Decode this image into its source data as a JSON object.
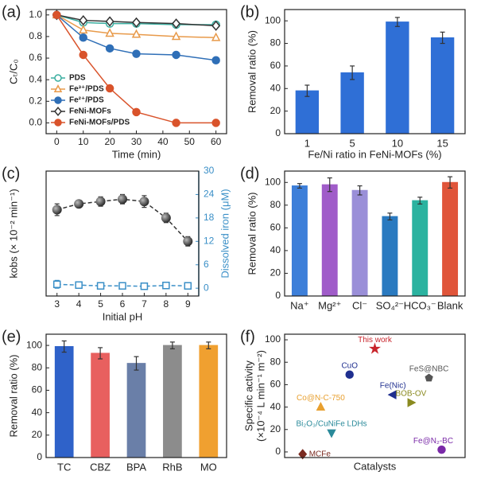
{
  "chart_data": [
    {
      "type": "line",
      "panel": "(a)",
      "xlabel": "Time (min)",
      "ylabel": "Cₜ/C₀",
      "x": [
        0,
        10,
        20,
        30,
        45,
        60
      ],
      "xlim": [
        -4,
        64
      ],
      "xticks": [
        0,
        10,
        20,
        30,
        40,
        50,
        60
      ],
      "ylim": [
        -0.1,
        1.05
      ],
      "yticks": [
        {
          "value": 0,
          "label": "0.0"
        },
        {
          "value": 0.2,
          "label": "0.2"
        },
        {
          "value": 0.4,
          "label": "0.4"
        },
        {
          "value": 0.6,
          "label": "0.6"
        },
        {
          "value": 0.8,
          "label": "0.8"
        },
        {
          "value": 1,
          "label": "1.0"
        }
      ],
      "legend": "lower left",
      "series": [
        {
          "name": "PDS",
          "color": "#3aaea0",
          "marker": "circle",
          "filled": false,
          "values": [
            1,
            0.93,
            0.92,
            0.92,
            0.91,
            0.91
          ]
        },
        {
          "name": "Fe³⁺/PDS",
          "color": "#e89a4a",
          "marker": "triangle",
          "filled": false,
          "values": [
            1,
            0.86,
            0.83,
            0.82,
            0.8,
            0.79
          ]
        },
        {
          "name": "Fe²⁺/PDS",
          "color": "#2f6fb7",
          "marker": "circle",
          "filled": true,
          "values": [
            1,
            0.79,
            0.69,
            0.64,
            0.63,
            0.58
          ]
        },
        {
          "name": "FeNi-MOFs",
          "color": "#333333",
          "marker": "diamond",
          "filled": false,
          "values": [
            1,
            0.95,
            0.94,
            0.93,
            0.92,
            0.9
          ]
        },
        {
          "name": "FeNi-MOFs/PDS",
          "color": "#d9532b",
          "marker": "circle",
          "filled": true,
          "values": [
            1,
            0.63,
            0.32,
            0.1,
            0,
            0
          ]
        }
      ]
    },
    {
      "type": "bar",
      "panel": "(b)",
      "xlabel": "Fe/Ni ratio in FeNi-MOFs (%)",
      "ylabel": "Removal ratio (%)",
      "categories": [
        "1",
        "5",
        "10",
        "15"
      ],
      "values": [
        38,
        54,
        99,
        85
      ],
      "errors": [
        5,
        6,
        4,
        5
      ],
      "color": "#2f6fd6",
      "ylim": [
        0,
        110
      ],
      "yticks": [
        0,
        20,
        40,
        60,
        80,
        100
      ]
    },
    {
      "type": "dual",
      "panel": "(c)",
      "xlabel": "Initial pH",
      "ylabel": "kobs (× 10⁻² min⁻¹)",
      "y2label": "Dissolved iron (μM)",
      "x": [
        3,
        4,
        5,
        6,
        7,
        8,
        9
      ],
      "xlim": [
        2.5,
        9.5
      ],
      "xticks": [
        3,
        4,
        5,
        6,
        7,
        8,
        9
      ],
      "ylim": [
        -0.67,
        10
      ],
      "y2lim": [
        -2,
        30
      ],
      "y2ticks": [
        0,
        6,
        12,
        18,
        24,
        30
      ],
      "series": [
        {
          "name": "kobs",
          "color": "#333333",
          "values": [
            6.7,
            7.2,
            7.4,
            7.6,
            7.4,
            6.0,
            4.0
          ],
          "errors": [
            0.5,
            0.3,
            0.4,
            0.4,
            0.5,
            0.4,
            0.4
          ]
        },
        {
          "name": "Dissolved iron",
          "color": "#3a8fc7",
          "axis": "y2",
          "values": [
            1.0,
            0.8,
            0.6,
            0.6,
            0.5,
            0.7,
            0.6
          ],
          "errors": [
            1,
            0.6,
            0.5,
            0.5,
            0.4,
            0.5,
            0.5
          ]
        }
      ]
    },
    {
      "type": "bar",
      "panel": "(d)",
      "ylabel": "Removal ratio (%)",
      "categories": [
        "Na⁺",
        "Mg²⁺",
        "Cl⁻",
        "SO₄²⁻",
        "HCO₃⁻",
        "Blank"
      ],
      "values": [
        97,
        98,
        93,
        70,
        84,
        100
      ],
      "errors": [
        2,
        6,
        4,
        3,
        3,
        5
      ],
      "colors": [
        "#3d7fd9",
        "#a05cc9",
        "#9a8fd8",
        "#2a7ac0",
        "#2bb3a0",
        "#e0553a"
      ],
      "ylim": [
        0,
        110
      ],
      "yticks": [
        0,
        20,
        40,
        60,
        80,
        100
      ]
    },
    {
      "type": "bar",
      "panel": "(e)",
      "ylabel": "Removal ratio (%)",
      "categories": [
        "TC",
        "CBZ",
        "BPA",
        "RhB",
        "MO"
      ],
      "values": [
        99,
        93,
        84,
        100,
        100
      ],
      "errors": [
        5,
        5,
        6,
        3,
        3
      ],
      "colors": [
        "#2f62c9",
        "#e8605f",
        "#6a7fa8",
        "#8c8c8c",
        "#f0a030"
      ],
      "ylim": [
        0,
        110
      ],
      "yticks": [
        0,
        20,
        40,
        60,
        80,
        100
      ]
    },
    {
      "type": "scatter",
      "panel": "(f)",
      "xlabel": "Catalysts",
      "ylabel": [
        "Specific activity",
        "(×10⁻⁴ L min⁻¹ m⁻²)"
      ],
      "xlim": [
        0,
        10
      ],
      "ylim": [
        -5,
        105
      ],
      "yticks": [
        0,
        20,
        40,
        60,
        80,
        100
      ],
      "points": [
        {
          "label": "This work",
          "x": 5,
          "y": 92,
          "color": "#c8242b",
          "marker": "star"
        },
        {
          "label": "CuO",
          "x": 3.6,
          "y": 69,
          "color": "#1f2f8f",
          "marker": "circle"
        },
        {
          "label": "FeS@NBC",
          "x": 8,
          "y": 66,
          "color": "#555555",
          "marker": "pentagon"
        },
        {
          "label": "Fe(Nic)",
          "x": 6,
          "y": 51,
          "color": "#1f2f8f",
          "marker": "tri-left"
        },
        {
          "label": "BOB-OV",
          "x": 7,
          "y": 44,
          "color": "#8a8a20",
          "marker": "tri-right"
        },
        {
          "label": "Co@N-C-750",
          "x": 2,
          "y": 40,
          "color": "#e8a030",
          "marker": "triangle"
        },
        {
          "label": "Bi₂O₃/CuNiFe LDHs",
          "x": 2.6,
          "y": 17,
          "color": "#2a8a9a",
          "marker": "tri-down"
        },
        {
          "label": "Fe@N₂-BC",
          "x": 8.7,
          "y": 2,
          "color": "#7a2aa8",
          "marker": "circle"
        },
        {
          "label": "MCFe",
          "x": 1,
          "y": -2,
          "color": "#7a2a20",
          "marker": "diamond"
        }
      ]
    }
  ]
}
